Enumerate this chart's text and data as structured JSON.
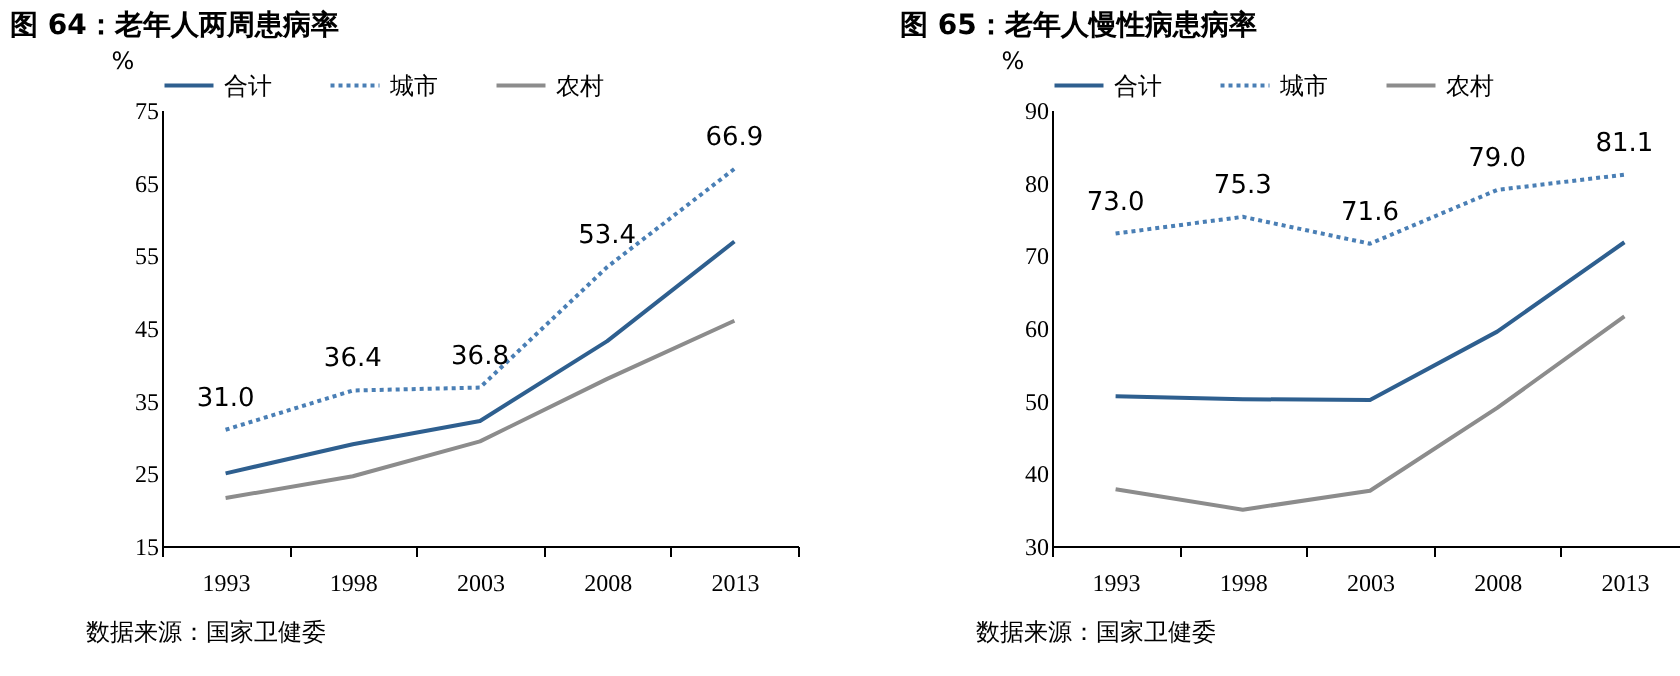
{
  "chart_data": [
    {
      "type": "line",
      "title": "图 64：老年人两周患病率",
      "ylabel": "%",
      "categories": [
        "1993",
        "1998",
        "2003",
        "2008",
        "2013"
      ],
      "ylim": [
        15,
        75
      ],
      "yticks": [
        15,
        25,
        35,
        45,
        55,
        65,
        75
      ],
      "grid": false,
      "legend": "top",
      "annotations": [
        "数据来源：国家卫健委"
      ],
      "series": [
        {
          "name": "合计",
          "color": "#2e5f8f",
          "line_style": "solid",
          "values": [
            25.0,
            29.0,
            32.2,
            43.2,
            56.9
          ]
        },
        {
          "name": "城市",
          "color": "#4a7fb5",
          "line_style": "dotted",
          "values": [
            31.0,
            36.4,
            36.8,
            53.4,
            66.9
          ],
          "value_labels": [
            "31.0",
            "36.4",
            "36.8",
            "53.4",
            "66.9"
          ]
        },
        {
          "name": "农村",
          "color": "#8c8c8c",
          "line_style": "solid",
          "values": [
            21.6,
            24.6,
            29.4,
            38.0,
            46.0
          ]
        }
      ]
    },
    {
      "type": "line",
      "title": "图 65：老年人慢性病患病率",
      "ylabel": "%",
      "categories": [
        "1993",
        "1998",
        "2003",
        "2008",
        "2013"
      ],
      "ylim": [
        30,
        90
      ],
      "yticks": [
        30,
        40,
        50,
        60,
        70,
        80,
        90
      ],
      "grid": false,
      "legend": "top",
      "annotations": [
        "数据来源：国家卫健委"
      ],
      "series": [
        {
          "name": "合计",
          "color": "#2e5f8f",
          "line_style": "solid",
          "values": [
            50.6,
            50.2,
            50.1,
            59.5,
            71.8
          ]
        },
        {
          "name": "城市",
          "color": "#4a7fb5",
          "line_style": "dotted",
          "values": [
            73.0,
            75.3,
            71.6,
            79.0,
            81.1
          ],
          "value_labels": [
            "73.0",
            "75.3",
            "71.6",
            "79.0",
            "81.1"
          ]
        },
        {
          "name": "农村",
          "color": "#8c8c8c",
          "line_style": "solid",
          "values": [
            37.8,
            35.0,
            37.6,
            49.0,
            61.6
          ]
        }
      ]
    }
  ]
}
